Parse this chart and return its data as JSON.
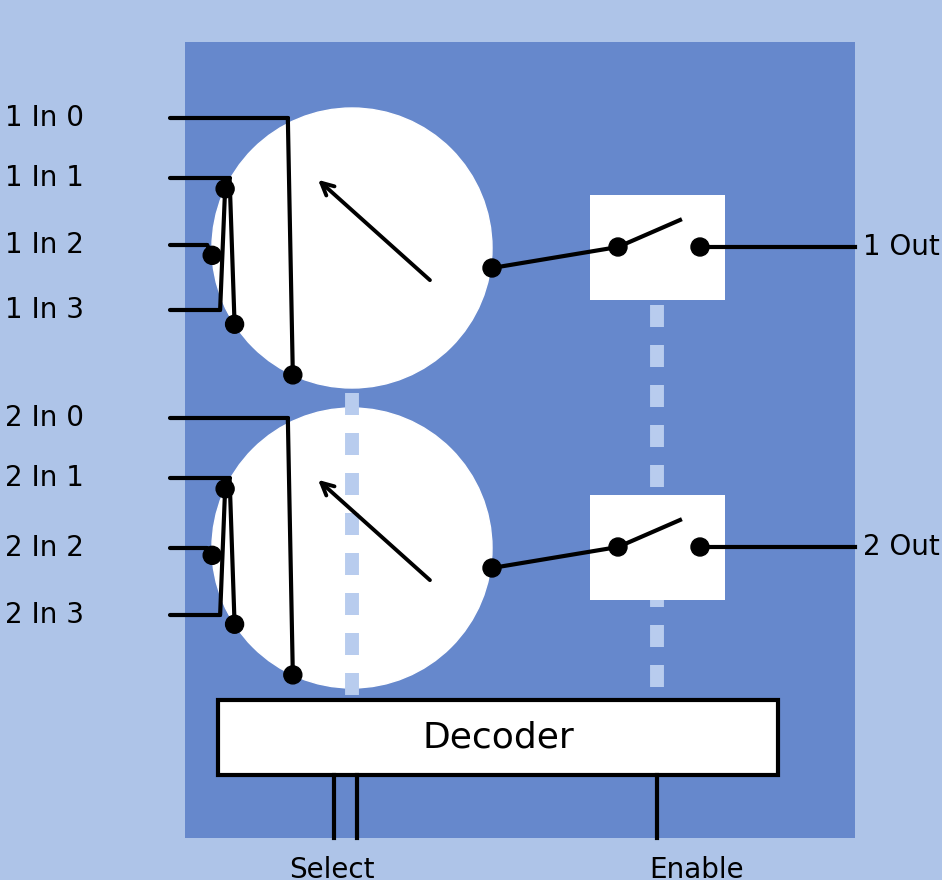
{
  "bg_outer": "#aec4e8",
  "bg_inner": "#6688cc",
  "circle_color": "#ffffff",
  "switch_box_color": "#ffffff",
  "dashed_line_color": "#b8ccee",
  "line_color": "#000000",
  "dot_color": "#000000",
  "decoder_box_color": "#ffffff",
  "decoder_box_border": "#000000",
  "text_color": "#000000",
  "font_size": 20,
  "switch1_labels": [
    "1 In 0",
    "1 In 1",
    "1 In 2",
    "1 In 3"
  ],
  "switch2_labels": [
    "2 In 0",
    "2 In 1",
    "2 In 2",
    "2 In 3"
  ],
  "out1_label": "1 Out",
  "out2_label": "2 Out",
  "select_label": "Select",
  "enable_label": "Enable",
  "decoder_label": "Decoder"
}
